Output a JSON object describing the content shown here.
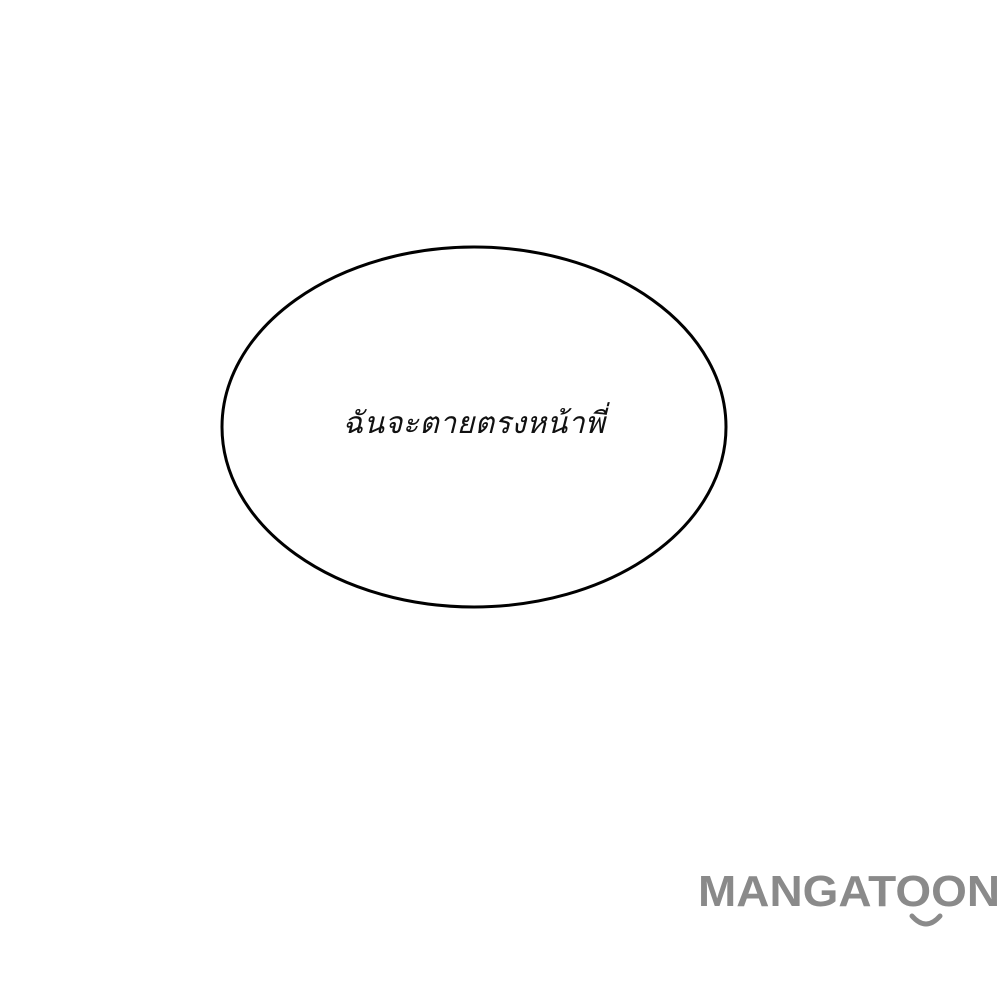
{
  "speech_bubble": {
    "text": "ฉันจะตายตรงหน้าพี่"
  },
  "watermark": {
    "text": "MANGATOON",
    "color": "#8a8a8a"
  }
}
